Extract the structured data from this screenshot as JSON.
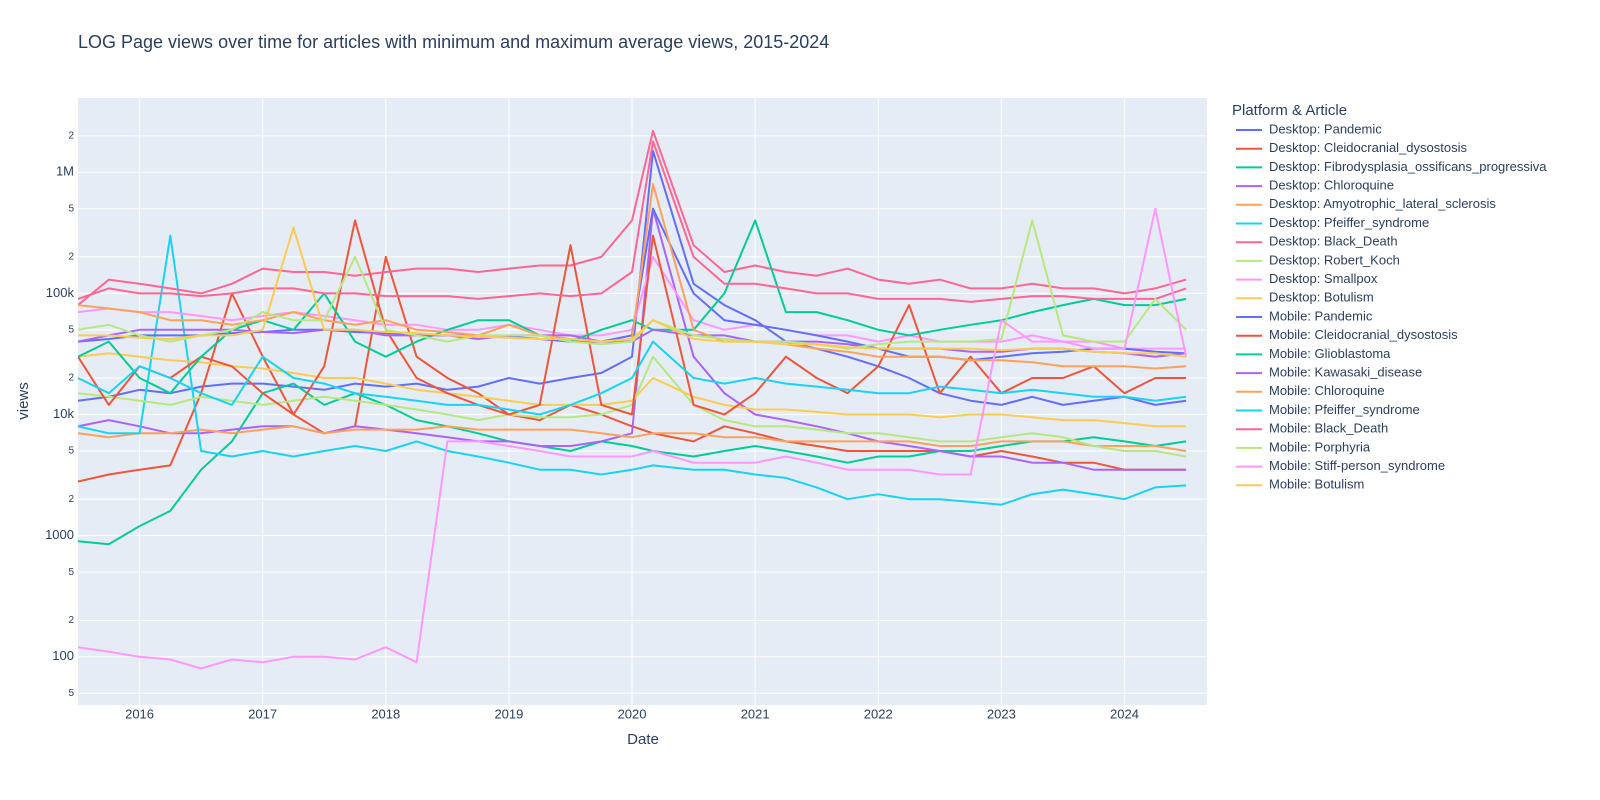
{
  "chart_data": {
    "type": "line",
    "title": "LOG Page views over time for articles with minimum and maximum average views, 2015-2024",
    "x_label": "Date",
    "y_label": "views",
    "legend_title": "Platform & Article",
    "log_y": true,
    "grid": true,
    "legend_position": "right",
    "xlim": [
      2015.5,
      2024.67
    ],
    "xticks": [
      2016,
      2017,
      2018,
      2019,
      2020,
      2021,
      2022,
      2023,
      2024
    ],
    "ylim": [
      40,
      4100000
    ],
    "yticks": [
      {
        "value": 50,
        "label": "5"
      },
      100,
      {
        "value": 200,
        "label": "2"
      },
      {
        "value": 500,
        "label": "5"
      },
      1000,
      {
        "value": 2000,
        "label": "2"
      },
      {
        "value": 5000,
        "label": "5"
      },
      {
        "value": 10000,
        "label": "10k"
      },
      {
        "value": 20000,
        "label": "2"
      },
      {
        "value": 50000,
        "label": "5"
      },
      {
        "value": 100000,
        "label": "100k"
      },
      {
        "value": 200000,
        "label": "2"
      },
      {
        "value": 500000,
        "label": "5"
      },
      {
        "value": 1000000,
        "label": "1M"
      },
      {
        "value": 2000000,
        "label": "2"
      }
    ],
    "x": [
      2015.5,
      2015.75,
      2016,
      2016.25,
      2016.5,
      2016.75,
      2017,
      2017.25,
      2017.5,
      2017.75,
      2018,
      2018.25,
      2018.5,
      2018.75,
      2019,
      2019.25,
      2019.5,
      2019.75,
      2020,
      2020.17,
      2020.5,
      2020.75,
      2021,
      2021.25,
      2021.5,
      2021.75,
      2022,
      2022.25,
      2022.5,
      2022.75,
      2023,
      2023.25,
      2023.5,
      2023.75,
      2024,
      2024.25,
      2024.5
    ],
    "series": [
      {
        "name": "Desktop: Pandemic",
        "color": "#636efa",
        "values": [
          13000,
          14000,
          16000,
          15000,
          17000,
          18000,
          18000,
          17000,
          16000,
          18000,
          17000,
          18000,
          16000,
          17000,
          20000,
          18000,
          20000,
          22000,
          30000,
          1500000,
          120000,
          80000,
          60000,
          40000,
          35000,
          30000,
          25000,
          20000,
          15000,
          13000,
          12000,
          14000,
          12000,
          13000,
          14000,
          12000,
          13000
        ]
      },
      {
        "name": "Desktop: Cleidocranial_dysostosis",
        "color": "#EF553B",
        "values": [
          2800,
          3200,
          3500,
          3800,
          15000,
          100000,
          30000,
          10000,
          7000,
          8000,
          200000,
          30000,
          20000,
          15000,
          10000,
          9000,
          12000,
          10000,
          8000,
          7000,
          6000,
          8000,
          7000,
          6000,
          5500,
          5000,
          5000,
          5000,
          5000,
          4500,
          5000,
          4500,
          4000,
          4000,
          3500,
          3500,
          3500
        ]
      },
      {
        "name": "Desktop: Fibrodysplasia_ossificans_progressiva",
        "color": "#00cc96",
        "values": [
          900,
          850,
          1200,
          1600,
          3500,
          6000,
          15000,
          18000,
          12000,
          15000,
          12000,
          9000,
          8000,
          7000,
          6000,
          5500,
          5000,
          6000,
          5500,
          5000,
          4500,
          5000,
          5500,
          5000,
          4500,
          4000,
          4500,
          4500,
          5000,
          5000,
          5500,
          6000,
          6000,
          6500,
          6000,
          5500,
          6000
        ]
      },
      {
        "name": "Desktop: Chloroquine",
        "color": "#ab63fa",
        "values": [
          8000,
          9000,
          8000,
          7000,
          7000,
          7500,
          8000,
          8000,
          7000,
          8000,
          7500,
          7000,
          6500,
          6000,
          6000,
          5500,
          5500,
          6000,
          7000,
          500000,
          30000,
          15000,
          10000,
          9000,
          8000,
          7000,
          6000,
          5500,
          5000,
          4500,
          4500,
          4000,
          4000,
          3500,
          3500,
          3500,
          3500
        ]
      },
      {
        "name": "Desktop: Amyotrophic_lateral_sclerosis",
        "color": "#FFA15A",
        "values": [
          7000,
          6500,
          7000,
          7000,
          7500,
          7000,
          7500,
          8000,
          7000,
          7500,
          7500,
          7500,
          8000,
          7500,
          7500,
          7500,
          7500,
          7000,
          6500,
          7000,
          7000,
          6500,
          6500,
          6000,
          6000,
          6000,
          6000,
          6000,
          5500,
          5500,
          6000,
          6000,
          6000,
          5500,
          5500,
          5500,
          5000
        ]
      },
      {
        "name": "Desktop: Pfeiffer_syndrome",
        "color": "#19d3f3",
        "values": [
          8000,
          7000,
          7000,
          300000,
          5000,
          4500,
          5000,
          4500,
          5000,
          5500,
          5000,
          6000,
          5000,
          4500,
          4000,
          3500,
          3500,
          3200,
          3500,
          3800,
          3500,
          3500,
          3200,
          3000,
          2500,
          2000,
          2200,
          2000,
          2000,
          1900,
          1800,
          2200,
          2400,
          2200,
          2000,
          2500,
          2600
        ]
      },
      {
        "name": "Desktop: Black_Death",
        "color": "#FF6692",
        "values": [
          80000,
          130000,
          120000,
          110000,
          100000,
          120000,
          160000,
          150000,
          150000,
          140000,
          150000,
          160000,
          160000,
          150000,
          160000,
          170000,
          170000,
          200000,
          400000,
          2200000,
          250000,
          150000,
          170000,
          150000,
          140000,
          160000,
          130000,
          120000,
          130000,
          110000,
          110000,
          120000,
          110000,
          110000,
          100000,
          110000,
          130000
        ]
      },
      {
        "name": "Desktop: Robert_Koch",
        "color": "#B6E880",
        "values": [
          15000,
          14000,
          13000,
          12000,
          14000,
          13000,
          12000,
          13000,
          14000,
          13000,
          12000,
          11000,
          10000,
          9000,
          10000,
          9500,
          9500,
          10000,
          12000,
          30000,
          12000,
          9000,
          8000,
          8000,
          7500,
          7000,
          7000,
          6500,
          6000,
          6000,
          6500,
          7000,
          6500,
          5500,
          5000,
          5000,
          4500
        ]
      },
      {
        "name": "Desktop: Smallpox",
        "color": "#FF97FF",
        "values": [
          70000,
          75000,
          70000,
          70000,
          65000,
          60000,
          65000,
          70000,
          65000,
          60000,
          55000,
          55000,
          50000,
          50000,
          55000,
          50000,
          45000,
          45000,
          50000,
          200000,
          60000,
          50000,
          55000,
          50000,
          45000,
          45000,
          40000,
          45000,
          40000,
          40000,
          40000,
          45000,
          40000,
          40000,
          35000,
          35000,
          35000
        ]
      },
      {
        "name": "Desktop: Botulism",
        "color": "#FECB52",
        "values": [
          30000,
          32000,
          30000,
          28000,
          27000,
          25000,
          24000,
          22000,
          20000,
          20000,
          18000,
          16000,
          15000,
          14000,
          13000,
          12000,
          12000,
          12000,
          13000,
          20000,
          14000,
          12000,
          11000,
          11000,
          10500,
          10000,
          10000,
          10000,
          9500,
          10000,
          10000,
          9500,
          9000,
          9000,
          8500,
          8000,
          8000
        ]
      },
      {
        "name": "Mobile: Pandemic",
        "color": "#636efa",
        "values": [
          40000,
          42000,
          45000,
          45000,
          45000,
          47000,
          48000,
          50000,
          50000,
          48000,
          47000,
          46000,
          45000,
          45000,
          44000,
          42000,
          40000,
          40000,
          45000,
          500000,
          100000,
          60000,
          55000,
          50000,
          45000,
          40000,
          35000,
          30000,
          30000,
          28000,
          30000,
          32000,
          33000,
          35000,
          35000,
          33000,
          32000
        ]
      },
      {
        "name": "Mobile: Cleidocranial_dysostosis",
        "color": "#EF553B",
        "values": [
          30000,
          12000,
          25000,
          20000,
          30000,
          25000,
          15000,
          10000,
          25000,
          400000,
          50000,
          20000,
          15000,
          12000,
          10000,
          12000,
          250000,
          12000,
          10000,
          300000,
          12000,
          10000,
          15000,
          30000,
          20000,
          15000,
          25000,
          80000,
          15000,
          30000,
          15000,
          20000,
          20000,
          25000,
          15000,
          20000,
          20000
        ]
      },
      {
        "name": "Mobile: Glioblastoma",
        "color": "#00cc96",
        "values": [
          30000,
          40000,
          20000,
          15000,
          30000,
          50000,
          60000,
          50000,
          100000,
          40000,
          30000,
          40000,
          50000,
          60000,
          60000,
          45000,
          40000,
          50000,
          60000,
          50000,
          50000,
          100000,
          400000,
          70000,
          70000,
          60000,
          50000,
          45000,
          50000,
          55000,
          60000,
          70000,
          80000,
          90000,
          80000,
          80000,
          90000
        ]
      },
      {
        "name": "Mobile: Kawasaki_disease",
        "color": "#ab63fa",
        "values": [
          40000,
          45000,
          50000,
          50000,
          50000,
          50000,
          48000,
          47000,
          50000,
          50000,
          45000,
          45000,
          45000,
          42000,
          45000,
          45000,
          45000,
          40000,
          40000,
          50000,
          45000,
          45000,
          40000,
          40000,
          40000,
          38000,
          35000,
          35000,
          35000,
          33000,
          33000,
          35000,
          35000,
          33000,
          32000,
          30000,
          32000
        ]
      },
      {
        "name": "Mobile: Chloroquine",
        "color": "#FFA15A",
        "values": [
          80000,
          75000,
          70000,
          60000,
          60000,
          55000,
          60000,
          70000,
          60000,
          55000,
          60000,
          50000,
          48000,
          45000,
          55000,
          45000,
          42000,
          40000,
          42000,
          800000,
          50000,
          40000,
          40000,
          38000,
          35000,
          33000,
          30000,
          30000,
          30000,
          28000,
          28000,
          27000,
          25000,
          25000,
          25000,
          24000,
          25000
        ]
      },
      {
        "name": "Mobile: Pfeiffer_syndrome",
        "color": "#19d3f3",
        "values": [
          20000,
          15000,
          25000,
          20000,
          15000,
          12000,
          30000,
          20000,
          18000,
          15000,
          14000,
          13000,
          12000,
          12000,
          11000,
          10000,
          12000,
          15000,
          20000,
          40000,
          20000,
          18000,
          20000,
          18000,
          17000,
          16000,
          15000,
          15000,
          17000,
          16000,
          15000,
          16000,
          15000,
          14000,
          14000,
          13000,
          14000
        ]
      },
      {
        "name": "Mobile: Black_Death",
        "color": "#FF6692",
        "values": [
          90000,
          110000,
          100000,
          100000,
          95000,
          100000,
          110000,
          110000,
          100000,
          100000,
          95000,
          95000,
          95000,
          90000,
          95000,
          100000,
          95000,
          100000,
          150000,
          1800000,
          200000,
          120000,
          120000,
          110000,
          100000,
          100000,
          90000,
          90000,
          90000,
          85000,
          90000,
          95000,
          95000,
          90000,
          90000,
          90000,
          110000
        ]
      },
      {
        "name": "Mobile: Porphyria",
        "color": "#B6E880",
        "values": [
          50000,
          55000,
          45000,
          40000,
          45000,
          50000,
          70000,
          60000,
          60000,
          200000,
          50000,
          45000,
          40000,
          45000,
          45000,
          45000,
          40000,
          38000,
          40000,
          60000,
          45000,
          42000,
          40000,
          40000,
          38000,
          35000,
          38000,
          40000,
          40000,
          40000,
          42000,
          400000,
          45000,
          40000,
          40000,
          90000,
          50000
        ]
      },
      {
        "name": "Mobile: Stiff-person_syndrome",
        "color": "#FF97FF",
        "values": [
          120,
          110,
          100,
          95,
          80,
          95,
          90,
          100,
          100,
          95,
          120,
          90,
          6000,
          6000,
          5500,
          5000,
          4500,
          4500,
          4500,
          5000,
          4000,
          4000,
          4000,
          4500,
          4000,
          3500,
          3500,
          3500,
          3200,
          3200,
          60000,
          40000,
          40000,
          35000,
          35000,
          500000,
          30000
        ]
      },
      {
        "name": "Mobile: Botulism",
        "color": "#FECB52",
        "values": [
          45000,
          45000,
          43000,
          42000,
          45000,
          45000,
          50000,
          350000,
          50000,
          50000,
          48000,
          47000,
          45000,
          44000,
          43000,
          42000,
          42000,
          40000,
          42000,
          60000,
          42000,
          40000,
          40000,
          38000,
          38000,
          36000,
          35000,
          35000,
          35000,
          35000,
          34000,
          35000,
          35000,
          33000,
          32000,
          32000,
          30000
        ]
      }
    ]
  }
}
